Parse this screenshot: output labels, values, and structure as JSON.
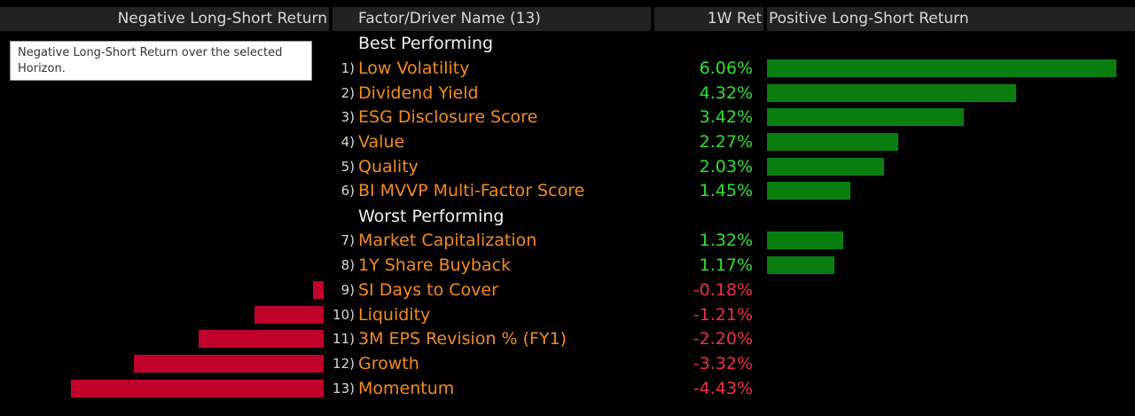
{
  "header": {
    "negative": "Negative Long-Short Return",
    "name": "Factor/Driver Name (13)",
    "ret": "1W Ret",
    "positive": "Positive Long-Short Return"
  },
  "tooltip": "Negative Long-Short Return over the selected Horizon.",
  "sections": {
    "best": "Best Performing",
    "worst": "Worst Performing"
  },
  "colors": {
    "positive_text": "#2fe035",
    "negative_text": "#ee2e48",
    "positive_bar": "#0a7d10",
    "negative_bar": "#c0022a",
    "factor_name": "#f58b1f"
  },
  "chart_data": {
    "type": "bar",
    "orientation": "horizontal",
    "value_unit": "%",
    "categories": [
      "Low Volatility",
      "Dividend Yield",
      "ESG Disclosure Score",
      "Value",
      "Quality",
      "BI MVVP Multi-Factor Score",
      "Market Capitalization",
      "1Y Share Buyback",
      "SI Days to Cover",
      "Liquidity",
      "3M EPS Revision % (FY1)",
      "Growth",
      "Momentum"
    ],
    "values": [
      6.06,
      4.32,
      3.42,
      2.27,
      2.03,
      1.45,
      1.32,
      1.17,
      -0.18,
      -1.21,
      -2.2,
      -3.32,
      -4.43
    ],
    "labels": [
      "6.06%",
      "4.32%",
      "3.42%",
      "2.27%",
      "2.03%",
      "1.45%",
      "1.32%",
      "1.17%",
      "-0.18%",
      "-1.21%",
      "-2.20%",
      "-3.32%",
      "-4.43%"
    ],
    "ranks": [
      "1)",
      "2)",
      "3)",
      "4)",
      "5)",
      "6)",
      "7)",
      "8)",
      "9)",
      "10)",
      "11)",
      "12)",
      "13)"
    ],
    "groups": [
      "best",
      "best",
      "best",
      "best",
      "best",
      "best",
      "worst",
      "worst",
      "worst",
      "worst",
      "worst",
      "worst",
      "worst"
    ]
  }
}
